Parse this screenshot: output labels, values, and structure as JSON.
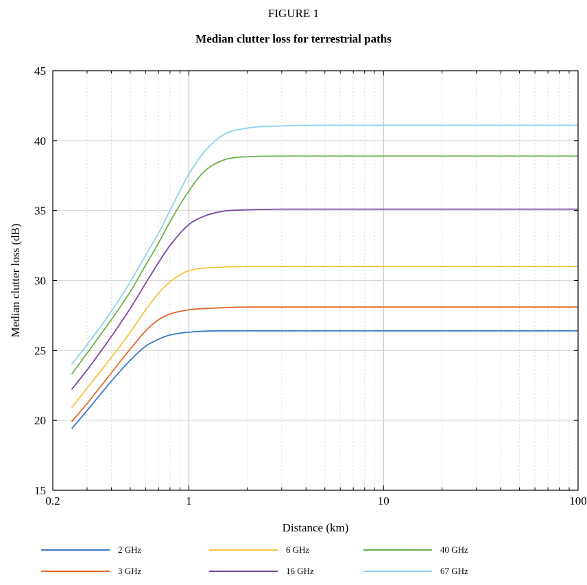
{
  "figure_label": "FIGURE 1",
  "chart_data": {
    "type": "line",
    "title": "Median clutter loss for terrestrial paths",
    "xlabel": "Distance (km)",
    "ylabel": "Median clutter loss (dB)",
    "x_scale": "log",
    "xlim": [
      0.2,
      100
    ],
    "ylim": [
      15,
      45
    ],
    "x_tick_labels": [
      "0.2",
      "1",
      "10",
      "100"
    ],
    "x_ticks": [
      0.2,
      1,
      10,
      100
    ],
    "y_ticks": [
      15,
      20,
      25,
      30,
      35,
      40,
      45
    ],
    "grid": true,
    "legend_position": "bottom",
    "series": [
      {
        "name": "2 GHz",
        "color": "#3a78c9",
        "x": [
          0.25,
          0.3,
          0.4,
          0.5,
          0.6,
          0.7,
          0.8,
          1,
          1.5,
          2,
          5,
          10,
          100
        ],
        "y": [
          19.4,
          20.7,
          22.8,
          24.3,
          25.3,
          25.8,
          26.1,
          26.3,
          26.4,
          26.4,
          26.4,
          26.4,
          26.4
        ]
      },
      {
        "name": "3 GHz",
        "color": "#e0692d",
        "x": [
          0.25,
          0.3,
          0.4,
          0.5,
          0.6,
          0.7,
          0.8,
          1,
          1.5,
          2,
          5,
          10,
          100
        ],
        "y": [
          19.9,
          21.2,
          23.4,
          25.1,
          26.4,
          27.2,
          27.6,
          27.9,
          28.05,
          28.1,
          28.1,
          28.1,
          28.1
        ]
      },
      {
        "name": "6 GHz",
        "color": "#f5c43a",
        "x": [
          0.25,
          0.3,
          0.4,
          0.5,
          0.6,
          0.7,
          0.8,
          1,
          1.5,
          2,
          3,
          5,
          10,
          100
        ],
        "y": [
          20.9,
          22.3,
          24.5,
          26.3,
          27.9,
          29.1,
          29.9,
          30.7,
          30.95,
          31.0,
          31.0,
          31.0,
          31.0,
          31.0
        ]
      },
      {
        "name": "16 GHz",
        "color": "#7a45a8",
        "x": [
          0.25,
          0.3,
          0.4,
          0.5,
          0.6,
          0.7,
          0.8,
          1,
          1.2,
          1.5,
          2,
          3,
          5,
          10,
          100
        ],
        "y": [
          22.2,
          23.6,
          26.0,
          28.0,
          29.8,
          31.3,
          32.5,
          34.0,
          34.6,
          34.95,
          35.05,
          35.1,
          35.1,
          35.1,
          35.1
        ]
      },
      {
        "name": "40 GHz",
        "color": "#6ab04c",
        "x": [
          0.25,
          0.3,
          0.4,
          0.5,
          0.6,
          0.7,
          0.8,
          1,
          1.2,
          1.5,
          2,
          3,
          5,
          10,
          100
        ],
        "y": [
          23.3,
          24.8,
          27.2,
          29.2,
          31.1,
          32.7,
          34.2,
          36.4,
          37.8,
          38.6,
          38.85,
          38.9,
          38.9,
          38.9,
          38.9
        ]
      },
      {
        "name": "67 GHz",
        "color": "#8fd0ee",
        "x": [
          0.25,
          0.3,
          0.4,
          0.5,
          0.6,
          0.7,
          0.8,
          1,
          1.2,
          1.5,
          2,
          3,
          5,
          10,
          100
        ],
        "y": [
          24.0,
          25.4,
          27.8,
          29.9,
          31.8,
          33.4,
          35.0,
          37.6,
          39.2,
          40.4,
          40.9,
          41.05,
          41.1,
          41.1,
          41.1
        ]
      }
    ]
  }
}
